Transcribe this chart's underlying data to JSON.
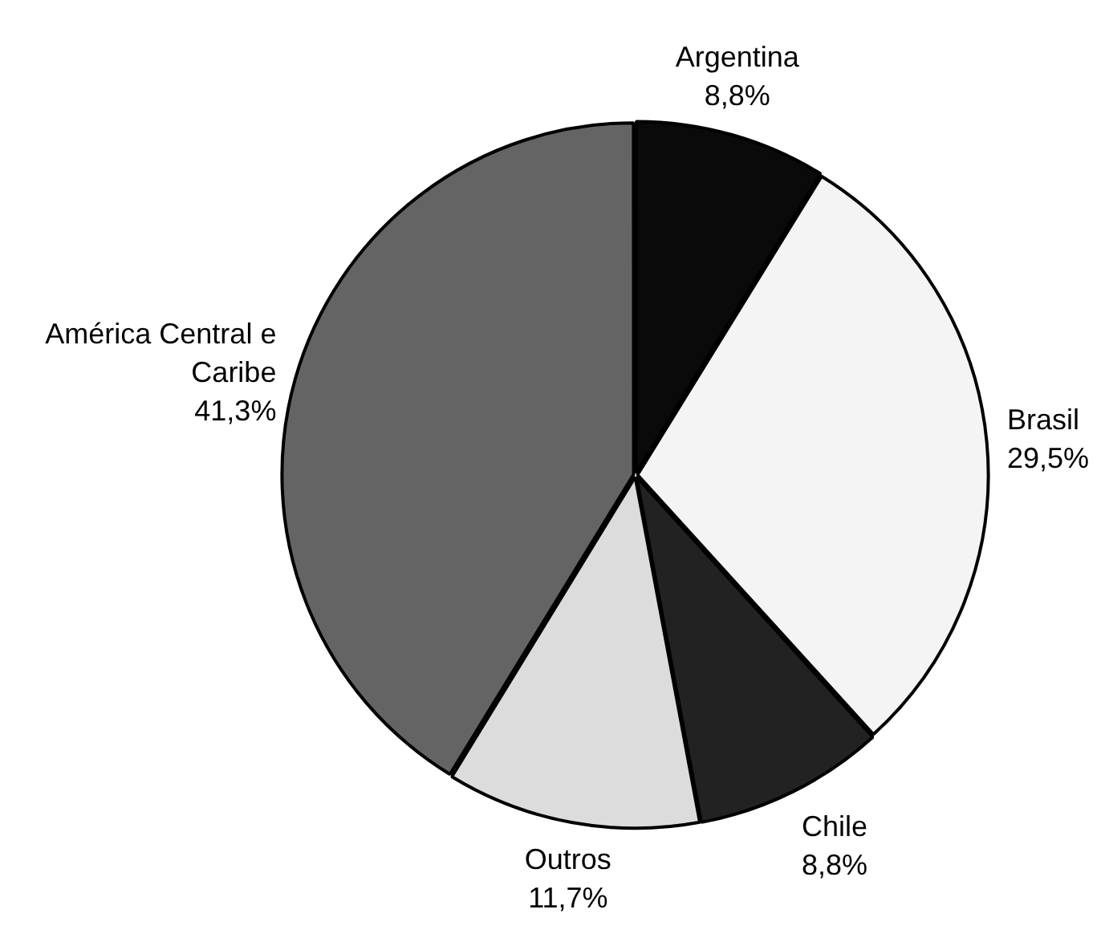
{
  "chart_data": {
    "type": "pie",
    "categories": [
      "Argentina",
      "Brasil",
      "Chile",
      "Outros",
      "América Central e Caribe"
    ],
    "values": [
      8.8,
      29.5,
      8.8,
      11.7,
      41.3
    ],
    "colors": [
      "#0a0a0a",
      "#f4f4f4",
      "#222222",
      "#dcdcdc",
      "#646464"
    ],
    "value_labels": [
      "8,8%",
      "29,5%",
      "8,8%",
      "11,7%",
      "41,3%"
    ],
    "legend": false
  }
}
